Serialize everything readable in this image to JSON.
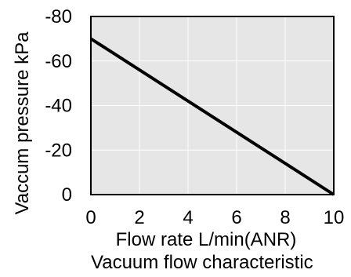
{
  "chart_data": {
    "type": "line",
    "title": "Vacuum flow characteristic",
    "xlabel": "Flow rate  L/min(ANR)",
    "ylabel": "Vaccum pressure kPa",
    "x_ticks": [
      "0",
      "2",
      "4",
      "6",
      "8",
      "10"
    ],
    "y_ticks": [
      "0",
      "-20",
      "-40",
      "-60",
      "-80"
    ],
    "x_tick_values": [
      0,
      2,
      4,
      6,
      8,
      10
    ],
    "y_tick_values": [
      0,
      -20,
      -40,
      -60,
      -80
    ],
    "xlim": [
      0,
      10
    ],
    "ylim": [
      0,
      -80
    ],
    "grid": true,
    "series": [
      {
        "x": [
          0,
          10
        ],
        "y": [
          -70,
          0
        ],
        "color": "#000000"
      }
    ],
    "colors": {
      "plot_background": "#e6e6e6",
      "grid": "#ffffff",
      "frame": "#000000",
      "line": "#000000"
    }
  }
}
